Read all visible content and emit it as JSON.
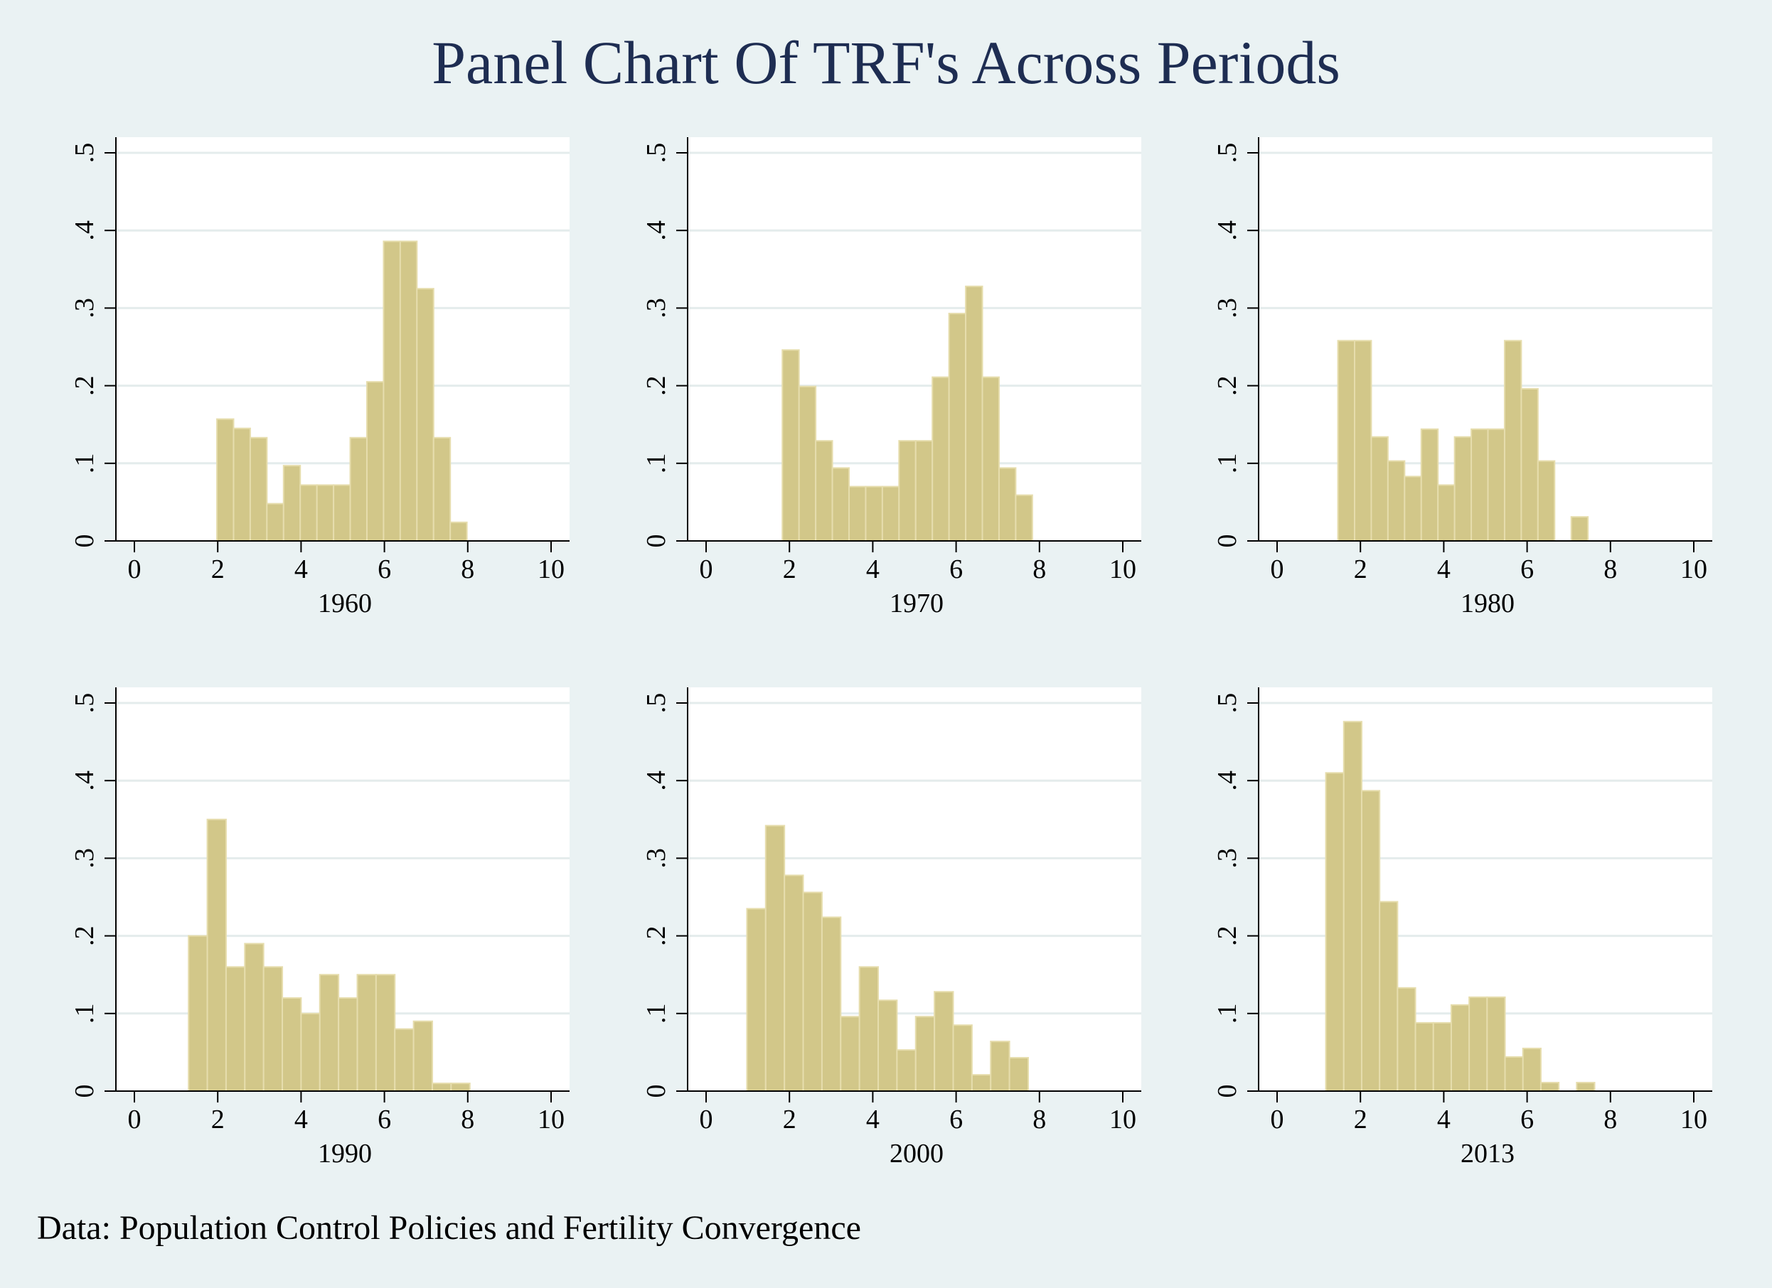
{
  "title": "Panel Chart Of TRF's Across Periods",
  "note": "Data: Population Control Policies and Fertility Convergence",
  "colors": {
    "bar_fill": "#d2c789",
    "bar_edge": "#e6ddad",
    "grid": "#e4ecec",
    "axis": "#000000",
    "title": "#1e2d52",
    "background": "#eaf2f3"
  },
  "chart_data": [
    {
      "type": "bar",
      "title": "1960",
      "xlim": [
        0,
        10
      ],
      "ylim": [
        0,
        0.5
      ],
      "bin_width": 0.4,
      "xticks": [
        "0",
        "2",
        "4",
        "6",
        "8",
        "10"
      ],
      "yticks": [
        "0",
        ".1",
        ".2",
        ".3",
        ".4",
        ".5"
      ],
      "bins": [
        {
          "x0": 1.98,
          "y": 0.157
        },
        {
          "x0": 2.38,
          "y": 0.145
        },
        {
          "x0": 2.78,
          "y": 0.133
        },
        {
          "x0": 3.18,
          "y": 0.048
        },
        {
          "x0": 3.58,
          "y": 0.097
        },
        {
          "x0": 3.98,
          "y": 0.072
        },
        {
          "x0": 4.38,
          "y": 0.072
        },
        {
          "x0": 4.78,
          "y": 0.072
        },
        {
          "x0": 5.18,
          "y": 0.133
        },
        {
          "x0": 5.58,
          "y": 0.205
        },
        {
          "x0": 5.98,
          "y": 0.386
        },
        {
          "x0": 6.38,
          "y": 0.386
        },
        {
          "x0": 6.78,
          "y": 0.325
        },
        {
          "x0": 7.18,
          "y": 0.133
        },
        {
          "x0": 7.58,
          "y": 0.024
        }
      ]
    },
    {
      "type": "bar",
      "title": "1970",
      "xlim": [
        0,
        10
      ],
      "ylim": [
        0,
        0.5
      ],
      "bin_width": 0.4,
      "xticks": [
        "0",
        "2",
        "4",
        "6",
        "8",
        "10"
      ],
      "yticks": [
        "0",
        ".1",
        ".2",
        ".3",
        ".4",
        ".5"
      ],
      "bins": [
        {
          "x0": 1.83,
          "y": 0.246
        },
        {
          "x0": 2.23,
          "y": 0.199
        },
        {
          "x0": 2.63,
          "y": 0.129
        },
        {
          "x0": 3.03,
          "y": 0.094
        },
        {
          "x0": 3.43,
          "y": 0.07
        },
        {
          "x0": 3.83,
          "y": 0.07
        },
        {
          "x0": 4.23,
          "y": 0.07
        },
        {
          "x0": 4.63,
          "y": 0.129
        },
        {
          "x0": 5.03,
          "y": 0.129
        },
        {
          "x0": 5.43,
          "y": 0.211
        },
        {
          "x0": 5.83,
          "y": 0.293
        },
        {
          "x0": 6.23,
          "y": 0.328
        },
        {
          "x0": 6.63,
          "y": 0.211
        },
        {
          "x0": 7.03,
          "y": 0.094
        },
        {
          "x0": 7.43,
          "y": 0.059
        }
      ]
    },
    {
      "type": "bar",
      "title": "1980",
      "xlim": [
        0,
        10
      ],
      "ylim": [
        0,
        0.5
      ],
      "bin_width": 0.4,
      "xticks": [
        "0",
        "2",
        "4",
        "6",
        "8",
        "10"
      ],
      "yticks": [
        "0",
        ".1",
        ".2",
        ".3",
        ".4",
        ".5"
      ],
      "bins": [
        {
          "x0": 1.46,
          "y": 0.258
        },
        {
          "x0": 1.86,
          "y": 0.258
        },
        {
          "x0": 2.26,
          "y": 0.134
        },
        {
          "x0": 2.66,
          "y": 0.103
        },
        {
          "x0": 3.06,
          "y": 0.083
        },
        {
          "x0": 3.46,
          "y": 0.144
        },
        {
          "x0": 3.86,
          "y": 0.072
        },
        {
          "x0": 4.26,
          "y": 0.134
        },
        {
          "x0": 4.66,
          "y": 0.144
        },
        {
          "x0": 5.06,
          "y": 0.144
        },
        {
          "x0": 5.46,
          "y": 0.258
        },
        {
          "x0": 5.86,
          "y": 0.196
        },
        {
          "x0": 6.26,
          "y": 0.103
        },
        {
          "x0": 6.66,
          "y": 0
        },
        {
          "x0": 7.06,
          "y": 0.031
        }
      ]
    },
    {
      "type": "bar",
      "title": "1990",
      "xlim": [
        0,
        10
      ],
      "ylim": [
        0,
        0.5
      ],
      "bin_width": 0.45,
      "xticks": [
        "0",
        "2",
        "4",
        "6",
        "8",
        "10"
      ],
      "yticks": [
        "0",
        ".1",
        ".2",
        ".3",
        ".4",
        ".5"
      ],
      "bins": [
        {
          "x0": 1.3,
          "y": 0.2
        },
        {
          "x0": 1.75,
          "y": 0.35
        },
        {
          "x0": 2.2,
          "y": 0.16
        },
        {
          "x0": 2.65,
          "y": 0.19
        },
        {
          "x0": 3.1,
          "y": 0.16
        },
        {
          "x0": 3.55,
          "y": 0.12
        },
        {
          "x0": 4.0,
          "y": 0.1
        },
        {
          "x0": 4.45,
          "y": 0.15
        },
        {
          "x0": 4.9,
          "y": 0.12
        },
        {
          "x0": 5.35,
          "y": 0.15
        },
        {
          "x0": 5.8,
          "y": 0.15
        },
        {
          "x0": 6.25,
          "y": 0.08
        },
        {
          "x0": 6.7,
          "y": 0.09
        },
        {
          "x0": 7.15,
          "y": 0.01
        },
        {
          "x0": 7.6,
          "y": 0.01
        }
      ]
    },
    {
      "type": "bar",
      "title": "2000",
      "xlim": [
        0,
        10
      ],
      "ylim": [
        0,
        0.5
      ],
      "bin_width": 0.45,
      "xticks": [
        "0",
        "2",
        "4",
        "6",
        "8",
        "10"
      ],
      "yticks": [
        "0",
        ".1",
        ".2",
        ".3",
        ".4",
        ".5"
      ],
      "bins": [
        {
          "x0": 0.98,
          "y": 0.235
        },
        {
          "x0": 1.43,
          "y": 0.342
        },
        {
          "x0": 1.88,
          "y": 0.278
        },
        {
          "x0": 2.33,
          "y": 0.256
        },
        {
          "x0": 2.78,
          "y": 0.224
        },
        {
          "x0": 3.23,
          "y": 0.096
        },
        {
          "x0": 3.68,
          "y": 0.16
        },
        {
          "x0": 4.13,
          "y": 0.117
        },
        {
          "x0": 4.58,
          "y": 0.053
        },
        {
          "x0": 5.03,
          "y": 0.096
        },
        {
          "x0": 5.48,
          "y": 0.128
        },
        {
          "x0": 5.93,
          "y": 0.085
        },
        {
          "x0": 6.38,
          "y": 0.021
        },
        {
          "x0": 6.83,
          "y": 0.064
        },
        {
          "x0": 7.28,
          "y": 0.043
        }
      ]
    },
    {
      "type": "bar",
      "title": "2013",
      "xlim": [
        0,
        10
      ],
      "ylim": [
        0,
        0.5
      ],
      "bin_width": 0.43,
      "xticks": [
        "0",
        "2",
        "4",
        "6",
        "8",
        "10"
      ],
      "yticks": [
        "0",
        ".1",
        ".2",
        ".3",
        ".4",
        ".5"
      ],
      "bins": [
        {
          "x0": 1.17,
          "y": 0.41
        },
        {
          "x0": 1.6,
          "y": 0.476
        },
        {
          "x0": 2.03,
          "y": 0.387
        },
        {
          "x0": 2.46,
          "y": 0.244
        },
        {
          "x0": 2.89,
          "y": 0.133
        },
        {
          "x0": 3.32,
          "y": 0.088
        },
        {
          "x0": 3.75,
          "y": 0.088
        },
        {
          "x0": 4.18,
          "y": 0.111
        },
        {
          "x0": 4.61,
          "y": 0.121
        },
        {
          "x0": 5.04,
          "y": 0.121
        },
        {
          "x0": 5.47,
          "y": 0.044
        },
        {
          "x0": 5.9,
          "y": 0.055
        },
        {
          "x0": 6.33,
          "y": 0.011
        },
        {
          "x0": 6.76,
          "y": 0
        },
        {
          "x0": 7.19,
          "y": 0.011
        }
      ]
    }
  ]
}
